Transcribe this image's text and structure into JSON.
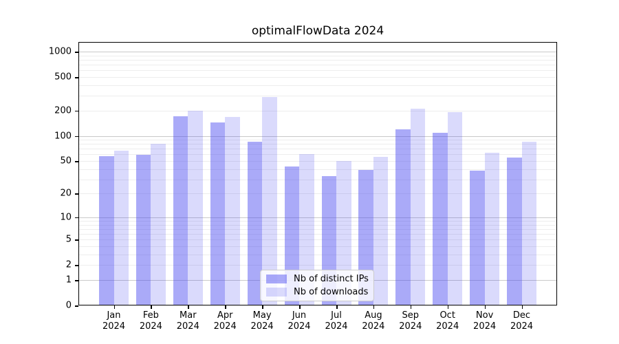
{
  "figure": {
    "title": "optimalFlowData 2024"
  },
  "chart_data": {
    "type": "bar",
    "title": "optimalFlowData 2024",
    "categories": [
      "Jan",
      "Feb",
      "Mar",
      "Apr",
      "May",
      "Jun",
      "Jul",
      "Aug",
      "Sep",
      "Oct",
      "Nov",
      "Dec"
    ],
    "category_year": "2024",
    "series": [
      {
        "name": "Nb of distinct IPs",
        "color": "rgba(70,70,240,0.46)",
        "values": [
          57,
          59,
          171,
          144,
          85,
          43,
          33,
          39,
          120,
          108,
          38,
          55
        ]
      },
      {
        "name": "Nb of downloads",
        "color": "rgba(70,70,240,0.20)",
        "values": [
          66,
          80,
          199,
          168,
          290,
          61,
          50,
          56,
          209,
          193,
          63,
          85
        ]
      }
    ],
    "yscale": "log1p",
    "ylim": [
      0,
      1300
    ],
    "yticks": [
      0,
      1,
      2,
      5,
      10,
      20,
      50,
      100,
      200,
      500,
      1000
    ],
    "grid": true,
    "grid_major_color": "#c9c9c9",
    "grid_minor_color": "#ededed",
    "axis_color": "#000000",
    "legend_position": "bottom-center"
  }
}
